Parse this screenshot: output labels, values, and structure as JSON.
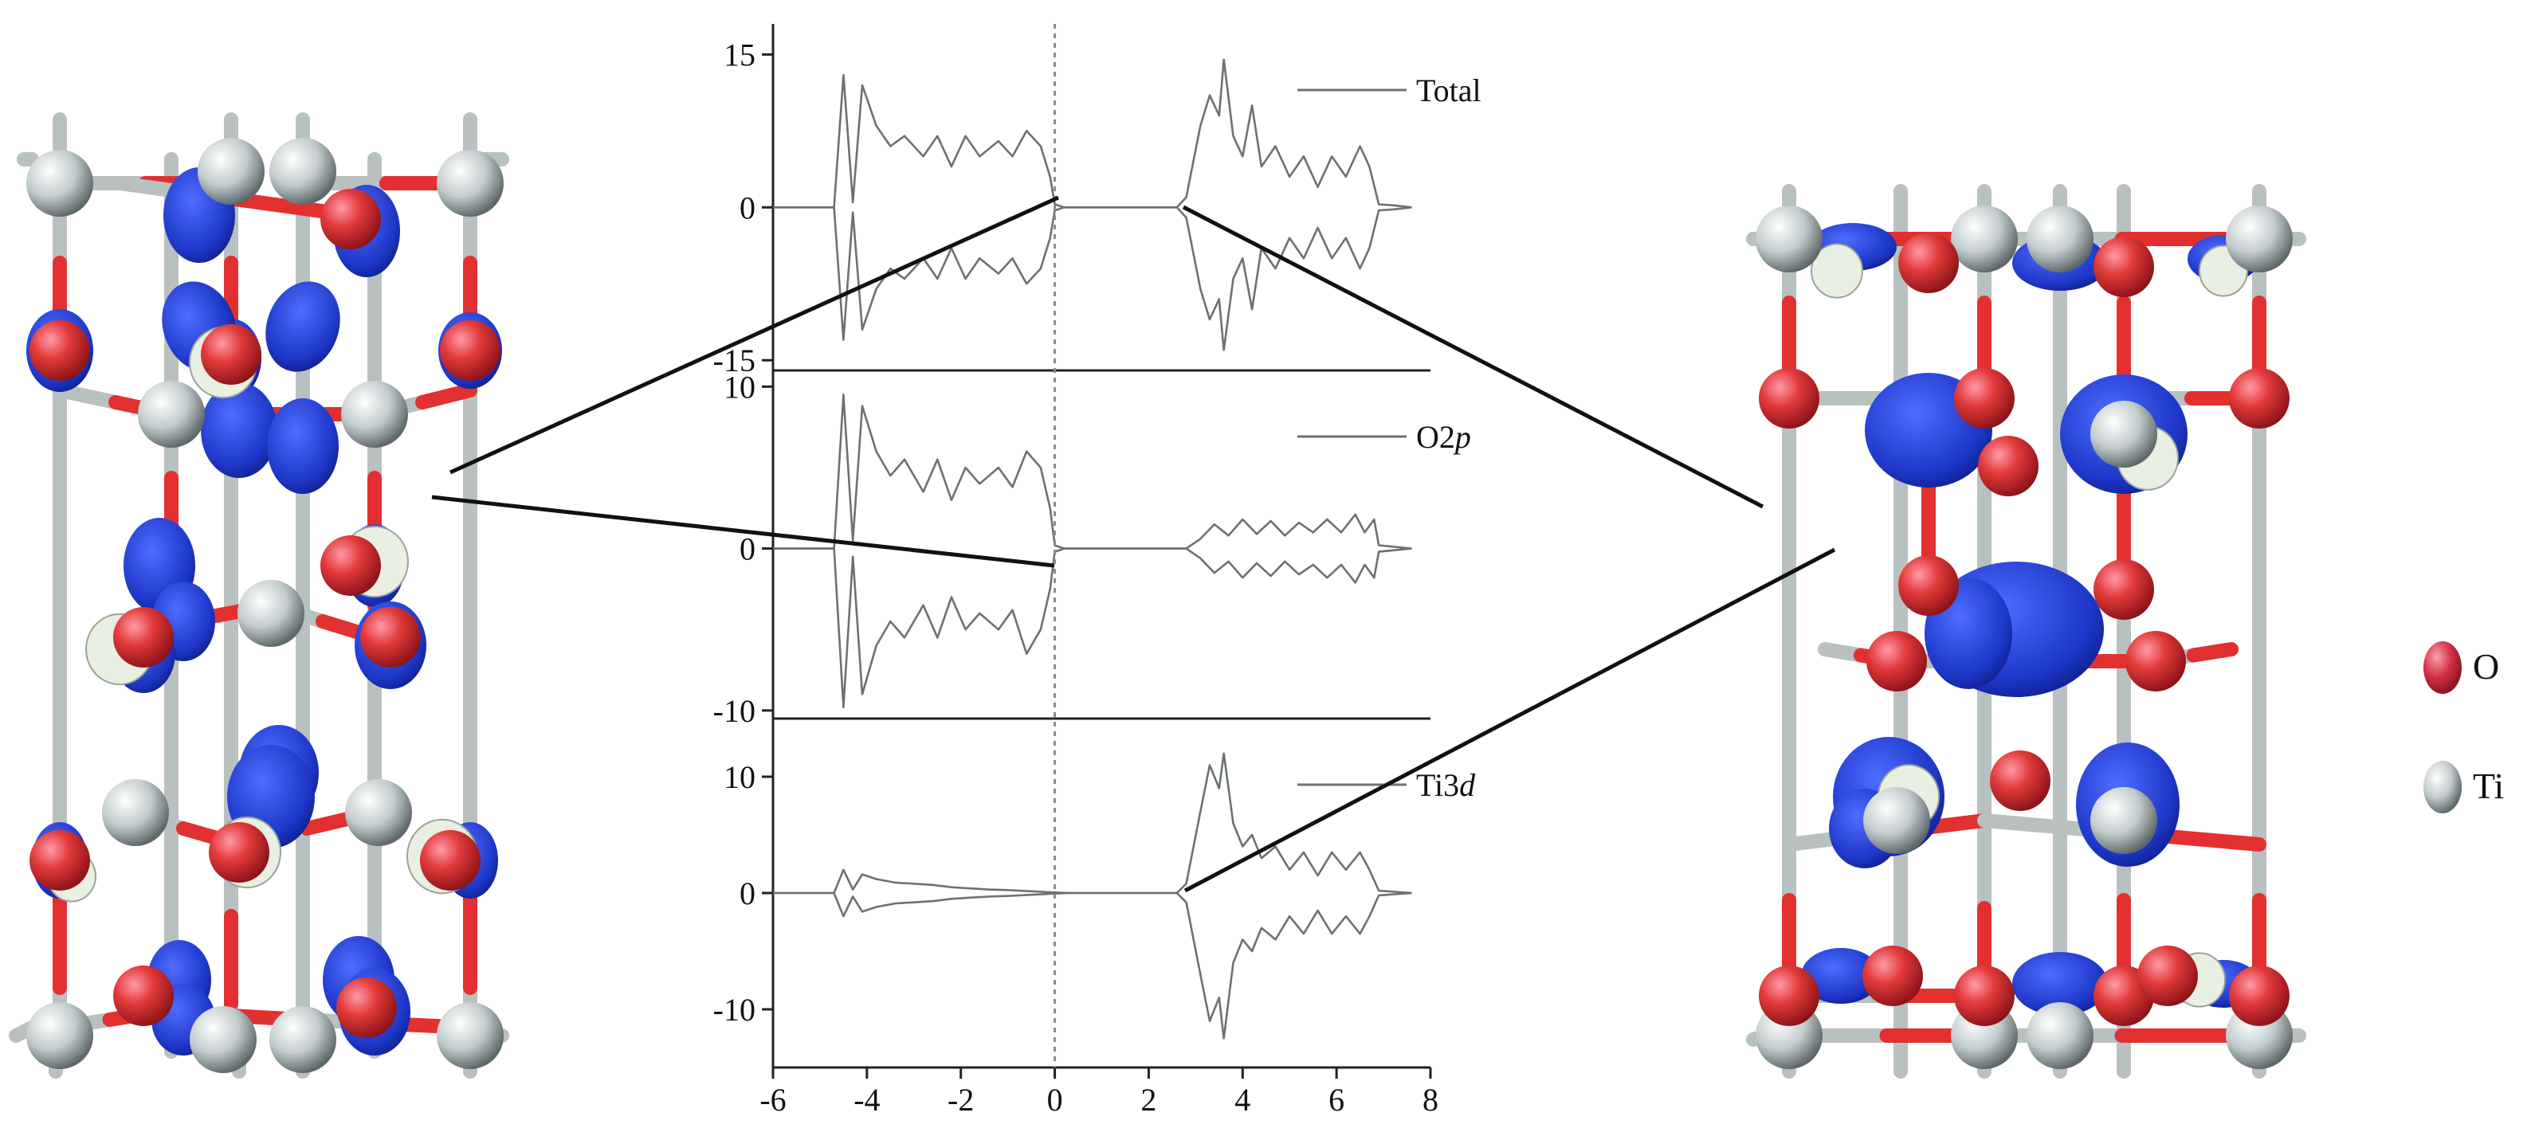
{
  "chart_data": [
    {
      "type": "line",
      "legend": "Total",
      "ylim": [
        -16,
        18
      ],
      "yticks": [
        {
          "v": 15,
          "t": "15"
        },
        {
          "v": 0,
          "t": "0"
        },
        {
          "v": -15,
          "t": "-15"
        }
      ],
      "up": [
        [
          -6,
          0
        ],
        [
          -4.7,
          0
        ],
        [
          -4.5,
          13
        ],
        [
          -4.3,
          0.5
        ],
        [
          -4.1,
          12
        ],
        [
          -3.8,
          8
        ],
        [
          -3.5,
          6
        ],
        [
          -3.2,
          7
        ],
        [
          -2.8,
          5
        ],
        [
          -2.5,
          7
        ],
        [
          -2.2,
          4
        ],
        [
          -1.9,
          7
        ],
        [
          -1.6,
          5
        ],
        [
          -1.2,
          6.5
        ],
        [
          -0.9,
          5
        ],
        [
          -0.6,
          7.5
        ],
        [
          -0.3,
          6
        ],
        [
          -0.1,
          3
        ],
        [
          0,
          0.3
        ],
        [
          0.2,
          0
        ],
        [
          2.6,
          0
        ],
        [
          2.8,
          1
        ],
        [
          3.1,
          8
        ],
        [
          3.3,
          11
        ],
        [
          3.5,
          9
        ],
        [
          3.6,
          14.5
        ],
        [
          3.8,
          7
        ],
        [
          4.0,
          5
        ],
        [
          4.2,
          10
        ],
        [
          4.4,
          4
        ],
        [
          4.7,
          6
        ],
        [
          5.0,
          3
        ],
        [
          5.3,
          5
        ],
        [
          5.6,
          2
        ],
        [
          5.9,
          5
        ],
        [
          6.2,
          3
        ],
        [
          6.5,
          6
        ],
        [
          6.7,
          4
        ],
        [
          6.9,
          0.3
        ],
        [
          7.2,
          0.2
        ],
        [
          7.6,
          0
        ]
      ],
      "down": [
        [
          -6,
          0
        ],
        [
          -4.7,
          0
        ],
        [
          -4.5,
          -13
        ],
        [
          -4.3,
          -0.5
        ],
        [
          -4.1,
          -12
        ],
        [
          -3.8,
          -8
        ],
        [
          -3.5,
          -6
        ],
        [
          -3.2,
          -7
        ],
        [
          -2.8,
          -5
        ],
        [
          -2.5,
          -7
        ],
        [
          -2.2,
          -4
        ],
        [
          -1.9,
          -7
        ],
        [
          -1.6,
          -5
        ],
        [
          -1.2,
          -6.5
        ],
        [
          -0.9,
          -5
        ],
        [
          -0.6,
          -7.5
        ],
        [
          -0.3,
          -6
        ],
        [
          -0.1,
          -3
        ],
        [
          0,
          -0.3
        ],
        [
          0.2,
          0
        ],
        [
          2.6,
          0
        ],
        [
          2.8,
          -1
        ],
        [
          3.1,
          -8
        ],
        [
          3.3,
          -11
        ],
        [
          3.5,
          -9
        ],
        [
          3.6,
          -14
        ],
        [
          3.8,
          -7
        ],
        [
          4.0,
          -5
        ],
        [
          4.2,
          -10
        ],
        [
          4.4,
          -4
        ],
        [
          4.7,
          -6
        ],
        [
          5.0,
          -3
        ],
        [
          5.3,
          -5
        ],
        [
          5.6,
          -2
        ],
        [
          5.9,
          -5
        ],
        [
          6.2,
          -3
        ],
        [
          6.5,
          -6
        ],
        [
          6.7,
          -4
        ],
        [
          6.9,
          -0.3
        ],
        [
          7.2,
          -0.2
        ],
        [
          7.6,
          0
        ]
      ]
    },
    {
      "type": "line",
      "legend": "O2p",
      "legend_italic": "p",
      "ylim": [
        -10.5,
        11
      ],
      "yticks": [
        {
          "v": 10,
          "t": "10"
        },
        {
          "v": 0,
          "t": "0"
        },
        {
          "v": -10,
          "t": "-10"
        }
      ],
      "up": [
        [
          -6,
          0
        ],
        [
          -4.7,
          0
        ],
        [
          -4.5,
          9.5
        ],
        [
          -4.3,
          0.5
        ],
        [
          -4.1,
          8.8
        ],
        [
          -3.8,
          6
        ],
        [
          -3.5,
          4.5
        ],
        [
          -3.2,
          5.5
        ],
        [
          -2.8,
          3.5
        ],
        [
          -2.5,
          5.5
        ],
        [
          -2.2,
          3
        ],
        [
          -1.9,
          5
        ],
        [
          -1.6,
          4
        ],
        [
          -1.2,
          5
        ],
        [
          -0.9,
          3.8
        ],
        [
          -0.6,
          6
        ],
        [
          -0.3,
          5
        ],
        [
          -0.1,
          2.5
        ],
        [
          0,
          0.2
        ],
        [
          0.2,
          0
        ],
        [
          2.8,
          0
        ],
        [
          3.1,
          0.6
        ],
        [
          3.4,
          1.5
        ],
        [
          3.7,
          0.8
        ],
        [
          4.0,
          1.8
        ],
        [
          4.3,
          0.9
        ],
        [
          4.6,
          1.7
        ],
        [
          4.9,
          0.8
        ],
        [
          5.2,
          1.6
        ],
        [
          5.5,
          1.0
        ],
        [
          5.8,
          1.8
        ],
        [
          6.1,
          1.0
        ],
        [
          6.4,
          2.1
        ],
        [
          6.6,
          1.0
        ],
        [
          6.8,
          1.8
        ],
        [
          6.9,
          0.2
        ],
        [
          7.6,
          0
        ]
      ],
      "down": [
        [
          -6,
          0
        ],
        [
          -4.7,
          0
        ],
        [
          -4.5,
          -9.8
        ],
        [
          -4.3,
          -0.5
        ],
        [
          -4.1,
          -9
        ],
        [
          -3.8,
          -6
        ],
        [
          -3.5,
          -4.5
        ],
        [
          -3.2,
          -5.5
        ],
        [
          -2.8,
          -3.5
        ],
        [
          -2.5,
          -5.5
        ],
        [
          -2.2,
          -3
        ],
        [
          -1.9,
          -5
        ],
        [
          -1.6,
          -4
        ],
        [
          -1.2,
          -5
        ],
        [
          -0.9,
          -3.8
        ],
        [
          -0.6,
          -6.5
        ],
        [
          -0.3,
          -5
        ],
        [
          -0.1,
          -2.5
        ],
        [
          0,
          -0.2
        ],
        [
          0.2,
          0
        ],
        [
          2.8,
          0
        ],
        [
          3.1,
          -0.6
        ],
        [
          3.4,
          -1.5
        ],
        [
          3.7,
          -0.8
        ],
        [
          4.0,
          -1.8
        ],
        [
          4.3,
          -0.9
        ],
        [
          4.6,
          -1.7
        ],
        [
          4.9,
          -0.8
        ],
        [
          5.2,
          -1.6
        ],
        [
          5.5,
          -1.0
        ],
        [
          5.8,
          -1.8
        ],
        [
          6.1,
          -1.0
        ],
        [
          6.4,
          -2.1
        ],
        [
          6.6,
          -1.0
        ],
        [
          6.8,
          -1.8
        ],
        [
          6.9,
          -0.2
        ],
        [
          7.6,
          0
        ]
      ]
    },
    {
      "type": "line",
      "legend": "Ti3d",
      "legend_italic": "d",
      "xlabels": [
        "-6",
        "-4",
        "-2",
        "0",
        "2",
        "4",
        "6",
        "8"
      ],
      "xlim": [
        -6,
        8
      ],
      "ylim": [
        -15,
        15
      ],
      "yticks": [
        {
          "v": 10,
          "t": "10"
        },
        {
          "v": 0,
          "t": "0"
        },
        {
          "v": -10,
          "t": "-10"
        }
      ],
      "up": [
        [
          -6,
          0
        ],
        [
          -4.7,
          0
        ],
        [
          -4.5,
          2
        ],
        [
          -4.3,
          0.3
        ],
        [
          -4.1,
          1.6
        ],
        [
          -3.8,
          1.2
        ],
        [
          -3.4,
          0.9
        ],
        [
          -3.0,
          0.8
        ],
        [
          -2.6,
          0.7
        ],
        [
          -2.2,
          0.5
        ],
        [
          -1.8,
          0.4
        ],
        [
          -1.4,
          0.3
        ],
        [
          -1.0,
          0.25
        ],
        [
          -0.5,
          0.15
        ],
        [
          0,
          0.05
        ],
        [
          0.3,
          0
        ],
        [
          2.6,
          0
        ],
        [
          2.8,
          0.8
        ],
        [
          3.1,
          7
        ],
        [
          3.3,
          11
        ],
        [
          3.5,
          9
        ],
        [
          3.6,
          12
        ],
        [
          3.8,
          6
        ],
        [
          4.0,
          4
        ],
        [
          4.2,
          5
        ],
        [
          4.4,
          3
        ],
        [
          4.7,
          4
        ],
        [
          5.0,
          2
        ],
        [
          5.3,
          3.5
        ],
        [
          5.6,
          1.5
        ],
        [
          5.9,
          3.5
        ],
        [
          6.2,
          2
        ],
        [
          6.5,
          3.5
        ],
        [
          6.7,
          2
        ],
        [
          6.9,
          0.2
        ],
        [
          7.6,
          0
        ]
      ],
      "down": [
        [
          -6,
          0
        ],
        [
          -4.7,
          0
        ],
        [
          -4.5,
          -2
        ],
        [
          -4.3,
          -0.3
        ],
        [
          -4.1,
          -1.6
        ],
        [
          -3.8,
          -1.2
        ],
        [
          -3.4,
          -0.9
        ],
        [
          -3.0,
          -0.8
        ],
        [
          -2.6,
          -0.7
        ],
        [
          -2.2,
          -0.5
        ],
        [
          -1.8,
          -0.4
        ],
        [
          -1.4,
          -0.3
        ],
        [
          -1.0,
          -0.25
        ],
        [
          -0.5,
          -0.15
        ],
        [
          0,
          -0.05
        ],
        [
          0.3,
          0
        ],
        [
          2.6,
          0
        ],
        [
          2.8,
          -0.8
        ],
        [
          3.1,
          -7
        ],
        [
          3.3,
          -11
        ],
        [
          3.5,
          -9
        ],
        [
          3.6,
          -12.5
        ],
        [
          3.8,
          -6
        ],
        [
          4.0,
          -4
        ],
        [
          4.2,
          -5
        ],
        [
          4.4,
          -3
        ],
        [
          4.7,
          -4
        ],
        [
          5.0,
          -2
        ],
        [
          5.3,
          -3.5
        ],
        [
          5.6,
          -1.5
        ],
        [
          5.9,
          -3.5
        ],
        [
          6.2,
          -2
        ],
        [
          6.5,
          -3.5
        ],
        [
          6.7,
          -2
        ],
        [
          6.9,
          -0.2
        ],
        [
          7.6,
          0
        ]
      ]
    }
  ],
  "legend": {
    "O": {
      "label": "O",
      "color": "#d42f45"
    },
    "Ti": {
      "label": "Ti",
      "color": "#b8c2c4"
    }
  },
  "colors": {
    "orbital_blue": "#1f3fd6",
    "oxygen_red": "#d42f45",
    "titanium_grey": "#b8c2c4",
    "curve": "#6a7273"
  }
}
